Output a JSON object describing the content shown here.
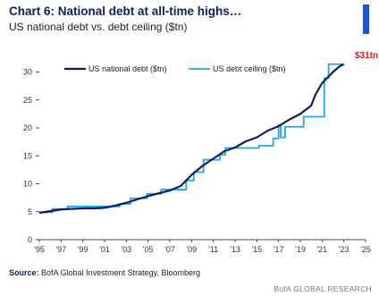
{
  "header": {
    "title": "Chart 6: National debt at all-time highs…",
    "subtitle": "US national debt vs. debt ceiling ($tn)"
  },
  "source": {
    "label": "Source:",
    "text": "BofA Global Investment Strategy, Bloomberg"
  },
  "footer": {
    "brand": "BofA GLOBAL RESEARCH"
  },
  "colors": {
    "debt": "#0b1f5c",
    "ceiling": "#22a6e6",
    "end_label": "#e0121b",
    "brand_accent": "#1f55c8"
  },
  "chart_data": {
    "type": "line",
    "title": "Chart 6: National debt at all-time highs…",
    "subtitle": "US national debt vs. debt ceiling ($tn)",
    "xlabel": "",
    "ylabel": "",
    "xlim": [
      1995,
      2025
    ],
    "ylim": [
      0,
      32
    ],
    "x_ticks": [
      1995,
      1997,
      1999,
      2001,
      2003,
      2005,
      2007,
      2009,
      2011,
      2013,
      2015,
      2017,
      2019,
      2021,
      2023,
      2025
    ],
    "x_tick_labels": [
      "'95",
      "'97",
      "'99",
      "'01",
      "'03",
      "'05",
      "'07",
      "'09",
      "'11",
      "'13",
      "'15",
      "'17",
      "'19",
      "'21",
      "'23",
      "'25"
    ],
    "y_ticks": [
      0,
      5,
      10,
      15,
      20,
      25,
      30
    ],
    "y_tick_labels": [
      "0",
      "5",
      "10",
      "15",
      "20",
      "25",
      "30"
    ],
    "grid": false,
    "legend_position": "top-left",
    "end_label": "$31tn",
    "series": [
      {
        "name": "US national debt ($tn)",
        "style": "line",
        "points": [
          [
            1995.0,
            4.8
          ],
          [
            1996.0,
            5.1
          ],
          [
            1997.0,
            5.4
          ],
          [
            1998.0,
            5.5
          ],
          [
            1999.0,
            5.6
          ],
          [
            2000.0,
            5.6
          ],
          [
            2001.0,
            5.7
          ],
          [
            2002.0,
            6.1
          ],
          [
            2003.0,
            6.6
          ],
          [
            2004.0,
            7.2
          ],
          [
            2005.0,
            7.8
          ],
          [
            2006.0,
            8.3
          ],
          [
            2007.0,
            8.8
          ],
          [
            2008.0,
            9.6
          ],
          [
            2009.0,
            11.6
          ],
          [
            2010.0,
            13.2
          ],
          [
            2011.0,
            14.5
          ],
          [
            2012.0,
            15.8
          ],
          [
            2013.0,
            16.5
          ],
          [
            2014.0,
            17.6
          ],
          [
            2015.0,
            18.3
          ],
          [
            2016.0,
            19.5
          ],
          [
            2017.0,
            20.3
          ],
          [
            2018.0,
            21.5
          ],
          [
            2019.0,
            22.5
          ],
          [
            2020.0,
            24.0
          ],
          [
            2020.4,
            26.0
          ],
          [
            2021.0,
            28.0
          ],
          [
            2022.0,
            30.0
          ],
          [
            2022.6,
            31.0
          ],
          [
            2023.0,
            31.4
          ]
        ]
      },
      {
        "name": "US debt ceiling ($tn)",
        "style": "step",
        "points": [
          [
            1995.0,
            4.9
          ],
          [
            1996.2,
            5.5
          ],
          [
            1997.6,
            5.95
          ],
          [
            2002.4,
            6.4
          ],
          [
            2003.4,
            7.4
          ],
          [
            2004.9,
            8.2
          ],
          [
            2006.2,
            8.97
          ],
          [
            2008.5,
            10.6
          ],
          [
            2009.2,
            12.1
          ],
          [
            2010.1,
            14.3
          ],
          [
            2011.6,
            15.2
          ],
          [
            2012.1,
            16.4
          ],
          [
            2015.2,
            16.8
          ],
          [
            2016.5,
            18.1
          ],
          [
            2017.0,
            20.5
          ],
          [
            2017.2,
            18.3
          ],
          [
            2017.6,
            20.2
          ],
          [
            2019.3,
            22.0
          ],
          [
            2021.1,
            22.0
          ],
          [
            2021.2,
            28.9
          ],
          [
            2021.6,
            31.4
          ],
          [
            2023.0,
            31.4
          ]
        ]
      }
    ]
  }
}
